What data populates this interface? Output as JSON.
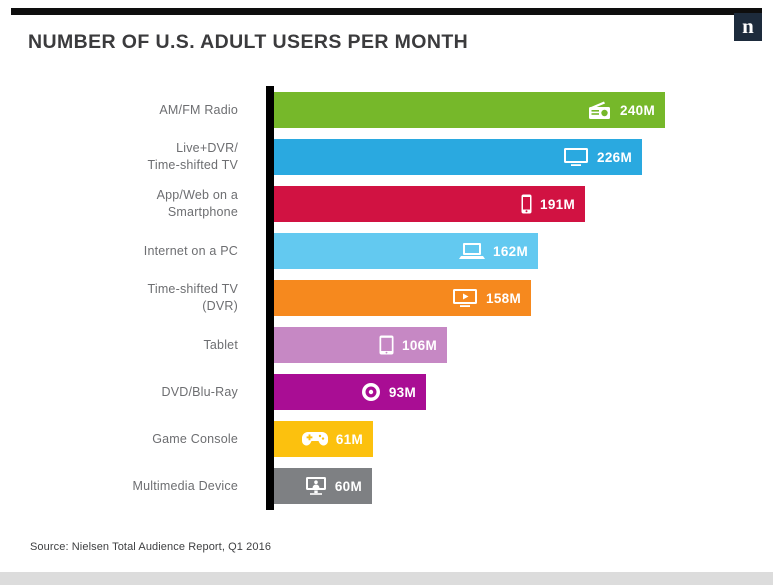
{
  "header": {
    "title": "NUMBER OF U.S. ADULT USERS PER MONTH",
    "logo_letter": "n",
    "logo_color": "#1d2b3c"
  },
  "footer": {
    "source": "Source: Nielsen Total Audience Report, Q1 2016"
  },
  "chart_data": {
    "type": "bar",
    "orientation": "horizontal",
    "title": "NUMBER OF U.S. ADULT USERS PER MONTH",
    "unit": "millions of U.S. adult users per month",
    "xlim": [
      0,
      240
    ],
    "grid": false,
    "legend": false,
    "rows": [
      {
        "label": "AM/FM Radio",
        "value": 240,
        "display": "240M",
        "color": "#76b82a",
        "icon": "radio-icon"
      },
      {
        "label": "Live+DVR/\nTime-shifted TV",
        "value": 226,
        "display": "226M",
        "color": "#2aa9e0",
        "icon": "tv-icon"
      },
      {
        "label": "App/Web on a\nSmartphone",
        "value": 191,
        "display": "191M",
        "color": "#d11242",
        "icon": "smartphone-icon"
      },
      {
        "label": "Internet on a PC",
        "value": 162,
        "display": "162M",
        "color": "#63c9f0",
        "icon": "laptop-icon"
      },
      {
        "label": "Time-shifted TV\n(DVR)",
        "value": 158,
        "display": "158M",
        "color": "#f6891e",
        "icon": "dvr-tv-icon"
      },
      {
        "label": "Tablet",
        "value": 106,
        "display": "106M",
        "color": "#c688c4",
        "icon": "tablet-icon"
      },
      {
        "label": "DVD/Blu-Ray",
        "value": 93,
        "display": "93M",
        "color": "#a90d94",
        "icon": "disc-icon"
      },
      {
        "label": "Game Console",
        "value": 61,
        "display": "61M",
        "color": "#fcc10e",
        "icon": "game-controller-icon"
      },
      {
        "label": "Multimedia Device",
        "value": 60,
        "display": "60M",
        "color": "#7e8083",
        "icon": "multimedia-device-icon"
      }
    ]
  }
}
